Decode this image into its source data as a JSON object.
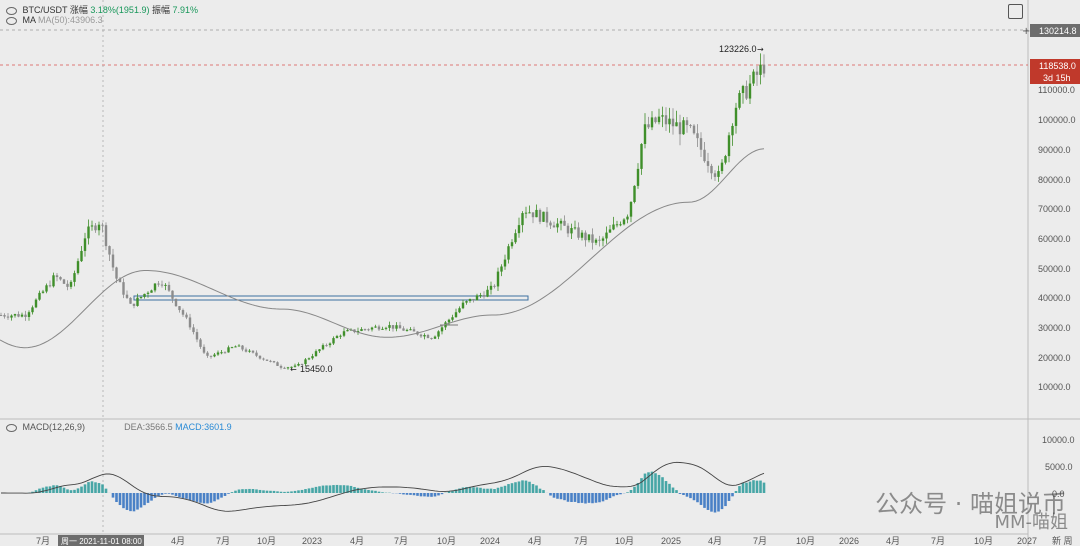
{
  "header": {
    "symbol": "BTC/USDT",
    "change_label": "涨幅",
    "change_value": "3.18%(1951.9)",
    "amplitude_label": "振幅",
    "amplitude_value": "7.91%",
    "ma_label": "MA",
    "ma_value": "MA(50):43906.3"
  },
  "macd_header": {
    "label": "MACD(12,26,9)",
    "dea": "DEA:3566.5",
    "macd": "MACD:3601.9"
  },
  "price_axis": {
    "ticks": [
      "110000.0",
      "100000.0",
      "90000.0",
      "80000.0",
      "70000.0",
      "60000.0",
      "50000.0",
      "40000.0",
      "30000.0",
      "20000.0",
      "10000.0"
    ],
    "hover_price": "130214.8",
    "last_price": "118538.0",
    "countdown": "3d 15h"
  },
  "macd_axis": {
    "ticks": [
      "10000.0",
      "5000.0",
      "0.0"
    ]
  },
  "time_axis": {
    "labels": [
      "7月",
      "周一 2021-11-01 08:00",
      "4月",
      "7月",
      "10月",
      "2023",
      "4月",
      "7月",
      "10月",
      "2024",
      "4月",
      "7月",
      "10月",
      "2025",
      "4月",
      "7月",
      "10月",
      "2026",
      "4月",
      "7月",
      "10月",
      "2027",
      "新 周"
    ]
  },
  "annotations": {
    "high": "123226.0",
    "low": "15450.0"
  },
  "watermark": {
    "line1": "公众号 · 喵姐说币",
    "line2": "MM-喵姐"
  },
  "colors": {
    "up": "#18975a",
    "up_dark": "#3f8f2a",
    "down": "#8c8c8c",
    "last_price_bg": "#c0392b",
    "hist_pos": "#2a9a9a",
    "hist_neg": "#2e6fbf"
  },
  "chart_data": {
    "type": "candlestick",
    "interval": "weekly",
    "y_range": [
      0,
      135000
    ],
    "grid": false,
    "price_waypoints": [
      {
        "t": "2021-06",
        "close": 34000
      },
      {
        "t": "2021-08",
        "close": 47000
      },
      {
        "t": "2021-09",
        "close": 43000
      },
      {
        "t": "2021-10",
        "close": 61000
      },
      {
        "t": "2021-11",
        "close": 66000
      },
      {
        "t": "2021-12",
        "close": 47000
      },
      {
        "t": "2022-01",
        "close": 37000
      },
      {
        "t": "2022-03",
        "close": 46000
      },
      {
        "t": "2022-05",
        "close": 30000
      },
      {
        "t": "2022-06",
        "close": 19500
      },
      {
        "t": "2022-08",
        "close": 23500
      },
      {
        "t": "2022-11",
        "close": 16500
      },
      {
        "t": "2022-12",
        "close": 16600
      },
      {
        "t": "2023-03",
        "close": 28000
      },
      {
        "t": "2023-06",
        "close": 30500
      },
      {
        "t": "2023-09",
        "close": 26500
      },
      {
        "t": "2023-11",
        "close": 37500
      },
      {
        "t": "2024-01",
        "close": 43000
      },
      {
        "t": "2024-03",
        "close": 70000
      },
      {
        "t": "2024-08",
        "close": 58000
      },
      {
        "t": "2024-10",
        "close": 69000
      },
      {
        "t": "2024-11",
        "close": 96000
      },
      {
        "t": "2024-12",
        "close": 100000
      },
      {
        "t": "2025-02",
        "close": 96000
      },
      {
        "t": "2025-04",
        "close": 80000
      },
      {
        "t": "2025-05",
        "close": 104000
      },
      {
        "t": "2025-07",
        "close": 118538
      }
    ],
    "ma50_waypoints": [
      {
        "t": "2021-06",
        "value": 23000
      },
      {
        "t": "2022-02",
        "value": 49000
      },
      {
        "t": "2022-11",
        "value": 36000
      },
      {
        "t": "2023-06",
        "value": 26500
      },
      {
        "t": "2024-01",
        "value": 34000
      },
      {
        "t": "2025-02",
        "value": 72000
      },
      {
        "t": "2025-07",
        "value": 90000
      }
    ],
    "support_line": 39500,
    "all_time_high": 123226.0,
    "cycle_low": 15450.0,
    "macd": {
      "dea": 3566.5,
      "macd": 3601.9,
      "y_range": [
        -6000,
        11000
      ]
    }
  }
}
